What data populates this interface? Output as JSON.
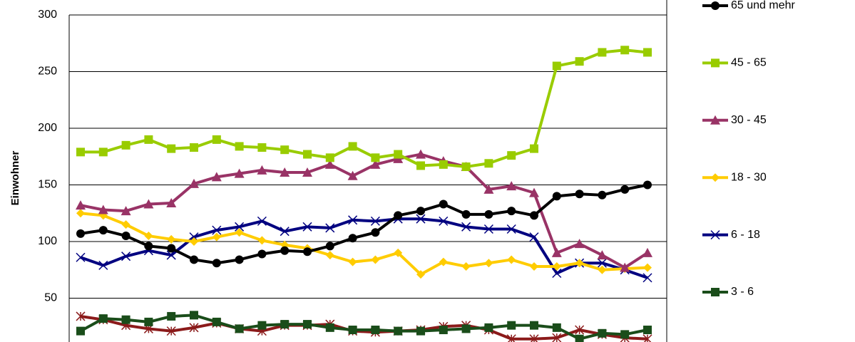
{
  "chart_data": {
    "type": "line",
    "y_label": "Einwohner",
    "categories": [
      null,
      null,
      null,
      null,
      null,
      null,
      null,
      null,
      null,
      null,
      null,
      null,
      null,
      null,
      null,
      null,
      null,
      null,
      null,
      null,
      null,
      null,
      null,
      null,
      null,
      null
    ],
    "ylim": [
      0,
      300
    ],
    "yticks": [
      50,
      100,
      150,
      200,
      250,
      300
    ],
    "grid": true,
    "series": [
      {
        "name": "65 und mehr",
        "color": "#000000",
        "marker": "circle",
        "values": [
          107,
          110,
          105,
          96,
          94,
          84,
          81,
          84,
          89,
          92,
          91,
          96,
          103,
          108,
          123,
          127,
          133,
          124,
          124,
          127,
          123,
          140,
          142,
          141,
          146,
          150
        ]
      },
      {
        "name": "45 - 65",
        "color": "#99cc00",
        "marker": "square",
        "values": [
          179,
          179,
          185,
          190,
          182,
          183,
          190,
          184,
          183,
          181,
          177,
          174,
          184,
          174,
          177,
          167,
          168,
          166,
          169,
          176,
          182,
          255,
          259,
          267,
          269,
          267
        ]
      },
      {
        "name": "30 - 45",
        "color": "#993366",
        "marker": "triangle",
        "values": [
          132,
          128,
          127,
          133,
          134,
          151,
          157,
          160,
          163,
          161,
          161,
          168,
          158,
          168,
          173,
          177,
          171,
          166,
          146,
          149,
          143,
          90,
          98,
          88,
          77,
          90
        ]
      },
      {
        "name": "18 - 30",
        "color": "#ffcc00",
        "marker": "diamond",
        "values": [
          125,
          123,
          115,
          105,
          102,
          100,
          104,
          108,
          101,
          97,
          94,
          88,
          82,
          84,
          90,
          71,
          82,
          78,
          81,
          84,
          78,
          78,
          81,
          75,
          76,
          77
        ]
      },
      {
        "name": "6 - 18",
        "color": "#000080",
        "marker": "x",
        "values": [
          86,
          79,
          87,
          92,
          88,
          104,
          110,
          113,
          118,
          109,
          113,
          112,
          119,
          118,
          120,
          120,
          118,
          113,
          111,
          111,
          104,
          72,
          81,
          81,
          75,
          68
        ]
      },
      {
        "name": "3 - 6",
        "color": "#1a4d1a",
        "marker": "square",
        "values": [
          21,
          32,
          31,
          29,
          34,
          35,
          29,
          23,
          26,
          27,
          27,
          24,
          22,
          22,
          21,
          21,
          22,
          23,
          24,
          26,
          26,
          24,
          14,
          19,
          18,
          22
        ]
      },
      {
        "color": "#8b1a1a",
        "marker": "star",
        "values": [
          34,
          31,
          26,
          23,
          21,
          24,
          28,
          23,
          21,
          26,
          26,
          27,
          21,
          20,
          21,
          22,
          25,
          26,
          22,
          14,
          14,
          15,
          22,
          18,
          15,
          14
        ]
      }
    ]
  }
}
